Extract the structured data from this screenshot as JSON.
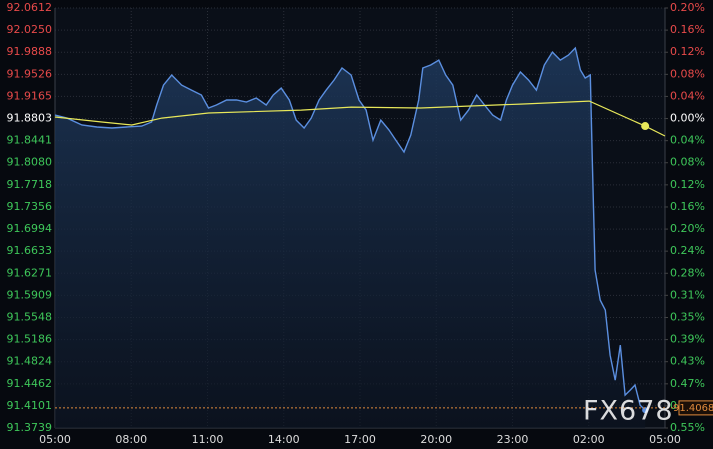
{
  "chart_data": {
    "type": "line",
    "x": [
      0,
      0.47,
      1.06,
      1.65,
      2.24,
      2.82,
      3.41,
      3.8,
      4.0,
      4.27,
      4.59,
      4.98,
      5.37,
      5.76,
      6.04,
      6.35,
      6.75,
      7.14,
      7.53,
      7.92,
      8.31,
      8.59,
      8.9,
      9.22,
      9.49,
      9.8,
      10.08,
      10.39,
      10.67,
      10.98,
      11.29,
      11.65,
      11.96,
      12.24,
      12.51,
      12.82,
      13.14,
      13.41,
      13.73,
      14.0,
      14.31,
      14.47,
      14.78,
      15.1,
      15.37,
      15.65,
      15.96,
      16.27,
      16.59,
      16.9,
      17.22,
      17.53,
      17.76,
      18.0,
      18.31,
      18.63,
      18.94,
      19.25,
      19.57,
      19.88,
      20.2,
      20.47,
      20.67,
      20.86,
      21.06,
      21.14,
      21.25,
      21.45,
      21.65,
      21.84,
      22.04,
      22.24,
      22.43,
      22.63,
      22.82,
      23.02,
      23.22
    ],
    "series": [
      {
        "color": "#5b8fe0",
        "values": [
          91.886,
          91.8811,
          91.8697,
          91.8664,
          91.8648,
          91.8664,
          91.868,
          91.8746,
          91.9024,
          91.9351,
          91.9515,
          91.9351,
          91.9269,
          91.9188,
          91.8975,
          91.9024,
          91.9106,
          91.9106,
          91.9073,
          91.9139,
          91.9024,
          91.9188,
          91.9302,
          91.9106,
          91.8778,
          91.8648,
          91.8811,
          91.9106,
          91.9269,
          91.9433,
          91.963,
          91.9515,
          91.9106,
          91.8942,
          91.8451,
          91.8778,
          91.8615,
          91.8451,
          91.8255,
          91.8533,
          91.9106,
          91.963,
          91.9679,
          91.976,
          91.9515,
          91.9351,
          91.8778,
          91.8942,
          91.9188,
          91.9024,
          91.886,
          91.8778,
          91.9106,
          91.9351,
          91.9564,
          91.9433,
          91.9269,
          91.9679,
          91.9891,
          91.976,
          91.9842,
          91.9957,
          91.9597,
          91.9466,
          91.9515,
          91.8124,
          91.6323,
          91.5832,
          91.5669,
          91.4932,
          91.4523,
          91.5096,
          91.4278,
          91.436,
          91.4442,
          91.4114,
          91.4032
        ]
      },
      {
        "color": "#e8e85a",
        "x": [
          0,
          1.84,
          3.02,
          4.2,
          6.04,
          9.69,
          11.65,
          14.39,
          16.35,
          18.31,
          21.02,
          23.22,
          24.0
        ],
        "values": [
          91.8828,
          91.8746,
          91.8697,
          91.8811,
          91.8893,
          91.8942,
          91.8991,
          91.8975,
          91.9008,
          91.904,
          91.9089,
          91.868,
          91.8517
        ]
      }
    ],
    "last_price": 91.4068,
    "last_price_color": "#e08a3c",
    "watermark": "FX678",
    "xlim": [
      0,
      24
    ],
    "xticks": [
      {
        "value": 0,
        "label": "05:00"
      },
      {
        "value": 3,
        "label": "08:00"
      },
      {
        "value": 6,
        "label": "11:00"
      },
      {
        "value": 9,
        "label": "14:00"
      },
      {
        "value": 12,
        "label": "17:00"
      },
      {
        "value": 15,
        "label": "20:00"
      },
      {
        "value": 18,
        "label": "23:00"
      },
      {
        "value": 21,
        "label": "02:00"
      },
      {
        "value": 24,
        "label": "05:00"
      }
    ],
    "ylim": [
      91.3739,
      92.0612
    ],
    "yticks": [
      92.0612,
      {
        "value": 92.025,
        "label": "92.0250"
      },
      91.9888,
      91.9526,
      91.9165,
      91.8803,
      91.8441,
      {
        "value": 91.808,
        "label": "91.8080"
      },
      91.7718,
      91.7356,
      91.6994,
      91.6633,
      91.6271,
      91.5909,
      91.5548,
      91.5186,
      91.4824,
      91.4462,
      91.4101,
      91.3739
    ],
    "y2lim": [
      -0.5512,
      0.1969
    ],
    "y2ticks": [
      {
        "value": 0.1969,
        "label": "0.20%"
      },
      {
        "value": 0.1575,
        "label": "0.16%"
      },
      {
        "value": 0.1181,
        "label": "0.12%"
      },
      {
        "value": 0.0787,
        "label": "0.08%"
      },
      {
        "value": 0.0394,
        "label": "0.04%"
      },
      {
        "value": 0,
        "label": "0.00%"
      },
      {
        "value": -0.0394,
        "label": "0.04%"
      },
      {
        "value": -0.0787,
        "label": "0.08%"
      },
      {
        "value": -0.1181,
        "label": "0.12%"
      },
      {
        "value": -0.1575,
        "label": "0.16%"
      },
      {
        "value": -0.1969,
        "label": "0.20%"
      },
      {
        "value": -0.2362,
        "label": "0.24%"
      },
      {
        "value": -0.2756,
        "label": "0.28%"
      },
      {
        "value": -0.3149,
        "label": "0.31%"
      },
      {
        "value": -0.3544,
        "label": "0.35%"
      },
      {
        "value": -0.3937,
        "label": "0.39%"
      },
      {
        "value": -0.4331,
        "label": "0.43%"
      },
      {
        "value": -0.4725,
        "label": "0.47%"
      },
      {
        "value": -0.5118,
        "label": "0.51%"
      },
      {
        "value": -0.5512,
        "label": "0.55%"
      }
    ],
    "up_color": "#e84a4a",
    "down_color": "#3ec75a",
    "flat_color": "#ffffff",
    "grid": true
  }
}
